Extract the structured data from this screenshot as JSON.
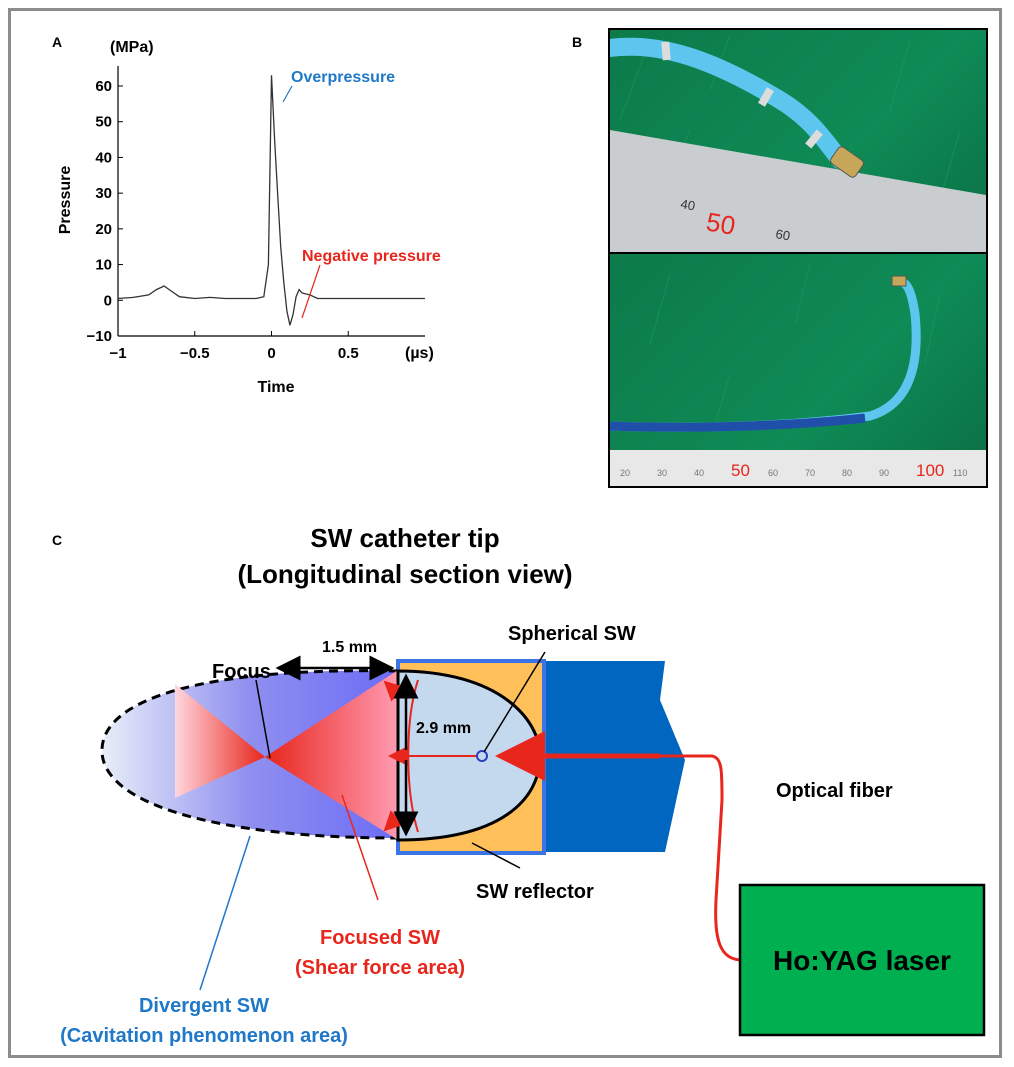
{
  "panel_a": {
    "label": "A",
    "y_unit": "(MPa)",
    "x_unit": "(µs)",
    "ylabel": "Pressure",
    "xlabel": "Time",
    "x_ticks": [
      "−1",
      "−0.5",
      "0",
      "0.5"
    ],
    "y_ticks": [
      "60",
      "50",
      "40",
      "30",
      "20",
      "10",
      "0",
      "−10"
    ],
    "annotation_over": "Overpressure",
    "annotation_neg": "Negative pressure",
    "colors": {
      "over": "#1f78c8",
      "neg": "#e8261c"
    }
  },
  "chart_data": {
    "type": "line",
    "xlabel": "Time",
    "ylabel": "Pressure",
    "xlim": [
      -1,
      1
    ],
    "ylim": [
      -10,
      65
    ],
    "series": [
      {
        "x": [
          -1,
          -0.9,
          -0.8,
          -0.75,
          -0.7,
          -0.65,
          -0.6,
          -0.5,
          -0.4,
          -0.3,
          -0.2,
          -0.1,
          -0.05,
          -0.02,
          0,
          0.02,
          0.04,
          0.06,
          0.08,
          0.1,
          0.12,
          0.14,
          0.16,
          0.18,
          0.2,
          0.25,
          0.3,
          0.4,
          0.5,
          0.6,
          0.7,
          0.8,
          0.9,
          1.0
        ],
        "values": [
          0.5,
          0.8,
          1.5,
          3,
          4,
          2.5,
          1,
          0.5,
          0.8,
          0.5,
          0.5,
          0.5,
          1,
          10,
          63,
          45,
          30,
          15,
          5,
          -3,
          -7,
          -4,
          1,
          3,
          2,
          1.5,
          0.5,
          0.5,
          0.5,
          0.5,
          0.5,
          0.5,
          0.5,
          0.5
        ]
      }
    ]
  },
  "panel_b": {
    "label": "B",
    "top_ruler": [
      "40",
      "50",
      "60"
    ],
    "bottom_ruler": [
      "20",
      "30",
      "40",
      "50",
      "60",
      "70",
      "80",
      "90",
      "100",
      "110"
    ]
  },
  "panel_c": {
    "label": "C",
    "title_line1": "SW catheter tip",
    "title_line2": "(Longitudinal section view)",
    "focus": "Focus",
    "dist1": "1.5 mm",
    "dist2": "2.9 mm",
    "spherical": "Spherical SW",
    "optical_fiber": "Optical fiber",
    "reflector": "SW reflector",
    "focused1": "Focused SW",
    "focused2": "(Shear force area)",
    "divergent1": "Divergent SW",
    "divergent2": "(Cavitation phenomenon area)",
    "laser": "Ho:YAG laser",
    "colors": {
      "red": "#e8261c",
      "blue_text": "#1f78c8",
      "laser_green": "#00b050",
      "reflector": "#ffc05a",
      "catheter": "#0066c0"
    }
  }
}
